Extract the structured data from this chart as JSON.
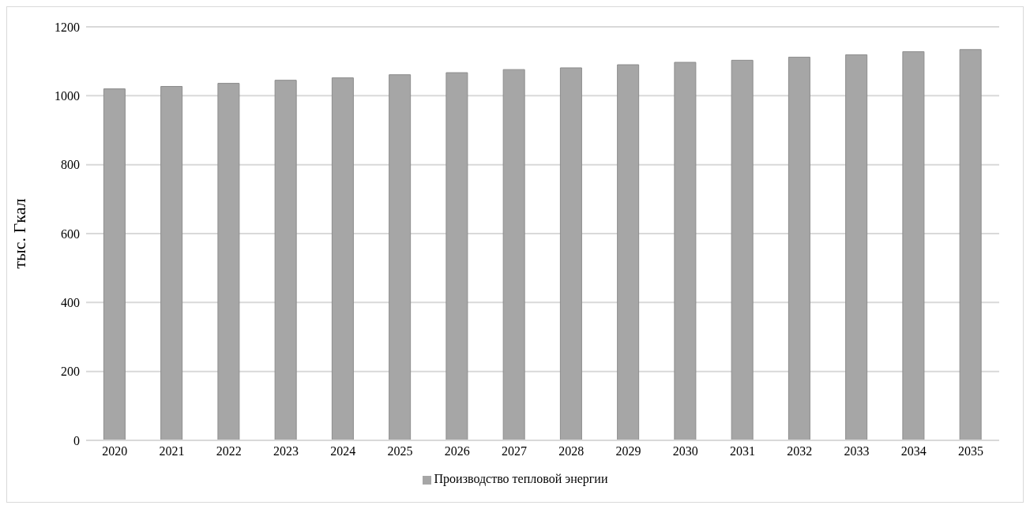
{
  "chart_data": {
    "type": "bar",
    "ylabel": "тыс. Гкал",
    "categories": [
      "2020",
      "2021",
      "2022",
      "2023",
      "2024",
      "2025",
      "2026",
      "2027",
      "2028",
      "2029",
      "2030",
      "2031",
      "2032",
      "2033",
      "2034",
      "2035"
    ],
    "series": [
      {
        "name": "Производство тепловой энергии",
        "color": "#a6a6a6",
        "values": [
          1020,
          1027,
          1036,
          1045,
          1052,
          1061,
          1067,
          1076,
          1081,
          1090,
          1097,
          1103,
          1112,
          1119,
          1128,
          1134
        ]
      }
    ],
    "ylim": [
      0,
      1200
    ],
    "yticks": [
      0,
      200,
      400,
      600,
      800,
      1000,
      1200
    ],
    "grid": "y",
    "legend": "bottom"
  }
}
